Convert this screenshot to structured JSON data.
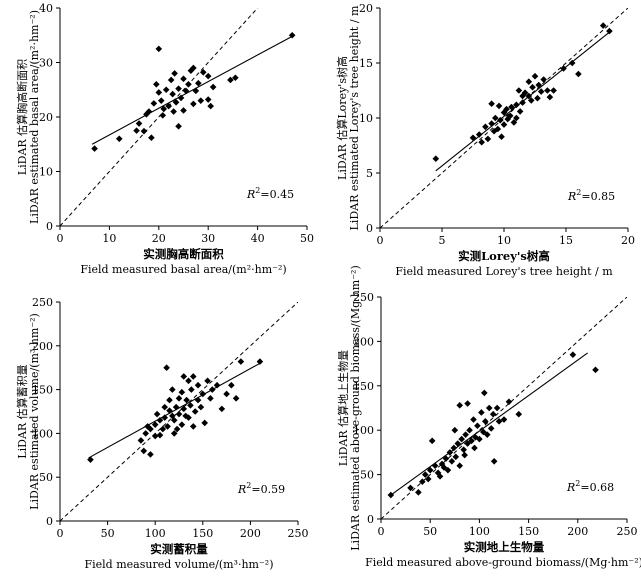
{
  "chart_data": [
    {
      "type": "scatter",
      "id": "basal",
      "xlabel_cn": "实测胸高断面积",
      "xlabel_en": "Field measured basal area/(m²·hm⁻²)",
      "ylabel_cn": "LiDAR 估算胸高断面积",
      "ylabel_en": "LiDAR estimated basal area/(m²·hm⁻²)",
      "xlim": [
        0,
        50
      ],
      "ylim": [
        0,
        40
      ],
      "xticks": [
        "0",
        "10",
        "20",
        "30",
        "40",
        "50"
      ],
      "yticks": [
        "0",
        "10",
        "20",
        "30",
        "40"
      ],
      "r2": "0.45",
      "fit": [
        [
          6.5,
          15.0
        ],
        [
          47,
          34.8
        ]
      ],
      "diagonal": [
        [
          0,
          0
        ],
        [
          50,
          50
        ]
      ],
      "points": [
        [
          7,
          14.2
        ],
        [
          12,
          16
        ],
        [
          15.5,
          17.5
        ],
        [
          16,
          18.8
        ],
        [
          17,
          17.4
        ],
        [
          17.5,
          20.5
        ],
        [
          18,
          21
        ],
        [
          18.5,
          16.2
        ],
        [
          19,
          22.5
        ],
        [
          19.5,
          26
        ],
        [
          20,
          32.5
        ],
        [
          20,
          24.5
        ],
        [
          20.5,
          23
        ],
        [
          20.8,
          20.3
        ],
        [
          21,
          21.5
        ],
        [
          21.5,
          25
        ],
        [
          22,
          22
        ],
        [
          22.5,
          26.8
        ],
        [
          22.8,
          24.2
        ],
        [
          23,
          21
        ],
        [
          23.2,
          28
        ],
        [
          23.5,
          22.7
        ],
        [
          24,
          25.2
        ],
        [
          24,
          18.3
        ],
        [
          24.5,
          23.5
        ],
        [
          25,
          27
        ],
        [
          25,
          21.2
        ],
        [
          25.5,
          24.8
        ],
        [
          26,
          26
        ],
        [
          26.5,
          28.5
        ],
        [
          27,
          22.4
        ],
        [
          27.5,
          24.8
        ],
        [
          27,
          29
        ],
        [
          28,
          26.2
        ],
        [
          28.5,
          23
        ],
        [
          29,
          28.2
        ],
        [
          30,
          27.5
        ],
        [
          30,
          23.2
        ],
        [
          30.5,
          22
        ],
        [
          31,
          25.5
        ],
        [
          34.5,
          26.8
        ],
        [
          35.5,
          27.2
        ],
        [
          47,
          35
        ]
      ],
      "ticks_x": [
        0,
        10,
        20,
        30,
        40,
        50
      ],
      "ticks_y": [
        0,
        10,
        20,
        30,
        40
      ]
    },
    {
      "type": "scatter",
      "id": "height",
      "xlabel_cn": "实测Lorey's树高",
      "xlabel_en": "Field measured Lorey's tree height / m",
      "ylabel_cn": "LiDAR 估算Lorey's树高",
      "ylabel_en": "LiDAR estimated Lorey's tree height / m",
      "xlim": [
        0,
        20
      ],
      "ylim": [
        0,
        20
      ],
      "xticks": [
        "0",
        "5",
        "10",
        "15",
        "20"
      ],
      "yticks": [
        "0",
        "5",
        "10",
        "15",
        "20"
      ],
      "r2": "0.85",
      "fit": [
        [
          4.5,
          5.2
        ],
        [
          18.5,
          17.8
        ]
      ],
      "diagonal": [
        [
          0,
          0
        ],
        [
          20,
          20
        ]
      ],
      "points": [
        [
          4.5,
          6.3
        ],
        [
          7.5,
          8.2
        ],
        [
          8,
          8.5
        ],
        [
          8.2,
          7.8
        ],
        [
          8.5,
          9.2
        ],
        [
          8.7,
          8.1
        ],
        [
          9,
          11.3
        ],
        [
          9,
          9.5
        ],
        [
          9.2,
          8.8
        ],
        [
          9.3,
          10
        ],
        [
          9.5,
          9
        ],
        [
          9.6,
          11.1
        ],
        [
          9.7,
          9.8
        ],
        [
          9.8,
          8.3
        ],
        [
          10,
          10.5
        ],
        [
          10,
          9.4
        ],
        [
          10.2,
          10.8
        ],
        [
          10.3,
          9.9
        ],
        [
          10.5,
          10.2
        ],
        [
          10.6,
          11
        ],
        [
          10.8,
          9.6
        ],
        [
          11,
          11.2
        ],
        [
          11,
          10
        ],
        [
          11.2,
          12.5
        ],
        [
          11.3,
          10.6
        ],
        [
          11.5,
          12
        ],
        [
          11.5,
          11.4
        ],
        [
          11.7,
          12.3
        ],
        [
          12,
          13.3
        ],
        [
          12,
          12
        ],
        [
          12.2,
          11.6
        ],
        [
          12.3,
          12.8
        ],
        [
          12.5,
          13.8
        ],
        [
          12.7,
          11.8
        ],
        [
          12.8,
          13
        ],
        [
          13,
          12.4
        ],
        [
          13.2,
          13.5
        ],
        [
          13.5,
          12.5
        ],
        [
          13.7,
          11.9
        ],
        [
          14,
          12.5
        ],
        [
          14.8,
          14.5
        ],
        [
          15.5,
          15
        ],
        [
          16,
          14
        ],
        [
          18,
          18.4
        ],
        [
          18.5,
          17.9
        ]
      ],
      "ticks_x": [
        0,
        5,
        10,
        15,
        20
      ],
      "ticks_y": [
        0,
        5,
        10,
        15,
        20
      ]
    },
    {
      "type": "scatter",
      "id": "volume",
      "xlabel_cn": "实测蓄积量",
      "xlabel_en": "Field measured volume/(m³·hm⁻²)",
      "ylabel_cn": "LiDAR 估算蓄积量",
      "ylabel_en": "LiDAR estimated volume/(m³·hm⁻²)",
      "xlim": [
        0,
        250
      ],
      "ylim": [
        0,
        250
      ],
      "xticks": [
        "0",
        "50",
        "100",
        "150",
        "200",
        "250"
      ],
      "yticks": [
        "0",
        "50",
        "100",
        "150",
        "200",
        "250"
      ],
      "r2": "0.59",
      "fit": [
        [
          30,
          72
        ],
        [
          210,
          180
        ]
      ],
      "diagonal": [
        [
          0,
          0
        ],
        [
          250,
          250
        ]
      ],
      "points": [
        [
          32,
          70
        ],
        [
          85,
          92
        ],
        [
          88,
          80
        ],
        [
          90,
          100
        ],
        [
          92,
          108
        ],
        [
          95,
          76
        ],
        [
          95,
          105
        ],
        [
          100,
          97
        ],
        [
          100,
          110
        ],
        [
          102,
          122
        ],
        [
          105,
          98
        ],
        [
          105,
          115
        ],
        [
          108,
          105
        ],
        [
          110,
          130
        ],
        [
          110,
          118
        ],
        [
          112,
          175
        ],
        [
          113,
          108
        ],
        [
          115,
          126
        ],
        [
          115,
          138
        ],
        [
          118,
          120
        ],
        [
          118,
          150
        ],
        [
          120,
          115
        ],
        [
          120,
          100
        ],
        [
          122,
          130
        ],
        [
          123,
          105
        ],
        [
          125,
          140
        ],
        [
          125,
          122
        ],
        [
          128,
          110
        ],
        [
          128,
          147
        ],
        [
          130,
          128
        ],
        [
          130,
          165
        ],
        [
          132,
          120
        ],
        [
          133,
          138
        ],
        [
          135,
          118
        ],
        [
          135,
          160
        ],
        [
          137,
          132
        ],
        [
          138,
          150
        ],
        [
          140,
          108
        ],
        [
          140,
          165
        ],
        [
          142,
          125
        ],
        [
          145,
          138
        ],
        [
          145,
          155
        ],
        [
          148,
          130
        ],
        [
          150,
          145
        ],
        [
          152,
          112
        ],
        [
          155,
          160
        ],
        [
          158,
          140
        ],
        [
          160,
          150
        ],
        [
          165,
          155
        ],
        [
          170,
          128
        ],
        [
          175,
          145
        ],
        [
          180,
          155
        ],
        [
          185,
          140
        ],
        [
          190,
          182
        ],
        [
          210,
          182
        ]
      ],
      "ticks_x": [
        0,
        50,
        100,
        150,
        200,
        250
      ],
      "ticks_y": [
        0,
        50,
        100,
        150,
        200,
        250
      ]
    },
    {
      "type": "scatter",
      "id": "biomass",
      "xlabel_cn": "实测地上生物量",
      "xlabel_en": "Field measured above-ground biomass/(Mg·hm⁻²)",
      "ylabel_cn": "LiDAR 估算地上生物量",
      "ylabel_en": "LiDAR estimated above-ground biomass/(Mg·hm⁻²)",
      "xlim": [
        0,
        250
      ],
      "ylim": [
        0,
        250
      ],
      "xticks": [
        "0",
        "50",
        "100",
        "150",
        "200",
        "250"
      ],
      "yticks": [
        "0",
        "50",
        "100",
        "150",
        "200",
        "250"
      ],
      "r2": "0.68",
      "fit": [
        [
          10,
          27
        ],
        [
          210,
          187
        ]
      ],
      "diagonal": [
        [
          0,
          0
        ],
        [
          250,
          250
        ]
      ],
      "points": [
        [
          10,
          27
        ],
        [
          30,
          35
        ],
        [
          38,
          30
        ],
        [
          42,
          42
        ],
        [
          45,
          50
        ],
        [
          48,
          45
        ],
        [
          50,
          55
        ],
        [
          52,
          88
        ],
        [
          55,
          60
        ],
        [
          58,
          52
        ],
        [
          60,
          48
        ],
        [
          62,
          62
        ],
        [
          64,
          58
        ],
        [
          66,
          68
        ],
        [
          68,
          55
        ],
        [
          70,
          75
        ],
        [
          72,
          65
        ],
        [
          74,
          80
        ],
        [
          75,
          100
        ],
        [
          76,
          70
        ],
        [
          78,
          85
        ],
        [
          80,
          128
        ],
        [
          80,
          60
        ],
        [
          82,
          90
        ],
        [
          84,
          78
        ],
        [
          85,
          72
        ],
        [
          86,
          95
        ],
        [
          88,
          130
        ],
        [
          88,
          85
        ],
        [
          90,
          100
        ],
        [
          92,
          88
        ],
        [
          94,
          112
        ],
        [
          95,
          80
        ],
        [
          96,
          92
        ],
        [
          98,
          105
        ],
        [
          100,
          90
        ],
        [
          102,
          120
        ],
        [
          104,
          98
        ],
        [
          105,
          142
        ],
        [
          106,
          110
        ],
        [
          108,
          95
        ],
        [
          110,
          125
        ],
        [
          112,
          102
        ],
        [
          114,
          118
        ],
        [
          115,
          65
        ],
        [
          118,
          125
        ],
        [
          120,
          110
        ],
        [
          125,
          112
        ],
        [
          130,
          132
        ],
        [
          140,
          118
        ],
        [
          195,
          185
        ],
        [
          218,
          168
        ]
      ],
      "ticks_x": [
        0,
        50,
        100,
        150,
        200,
        250
      ],
      "ticks_y": [
        0,
        50,
        100,
        150,
        200,
        250
      ]
    }
  ]
}
